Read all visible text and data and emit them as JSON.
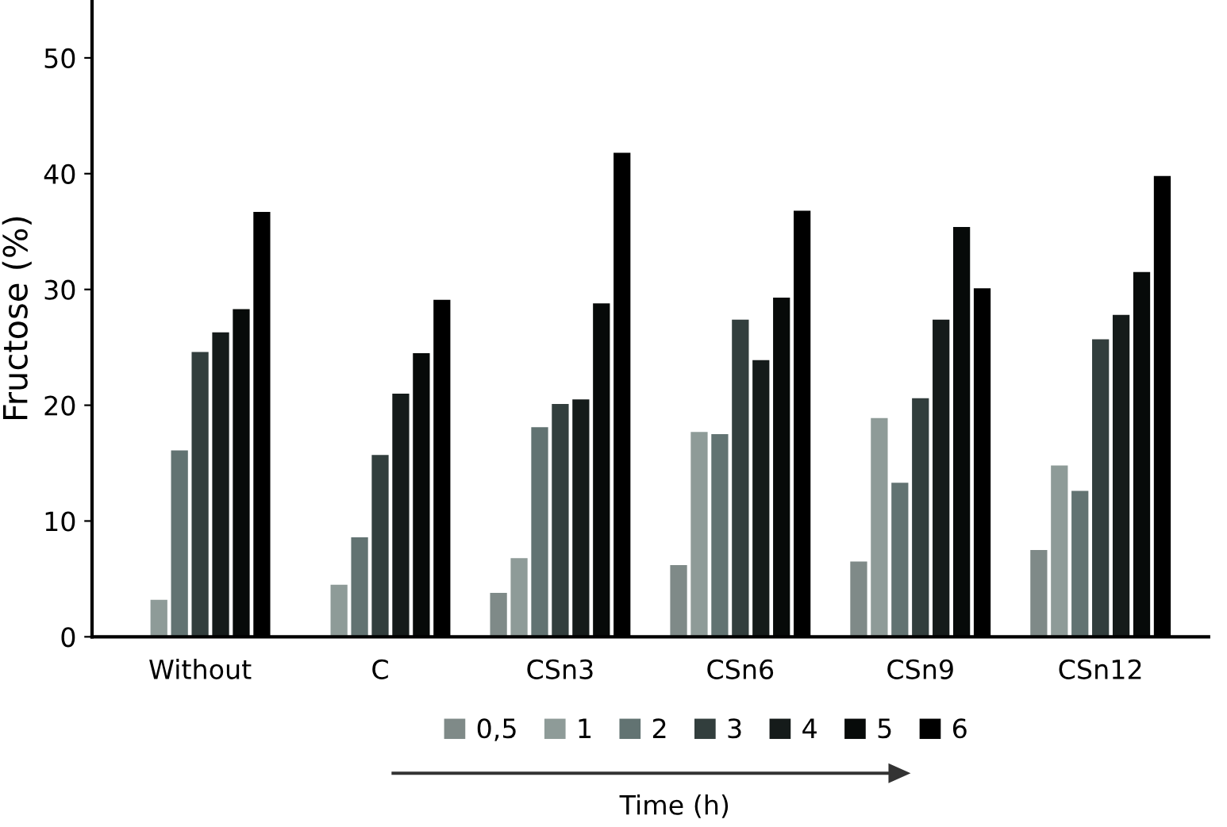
{
  "chart_data": {
    "type": "bar",
    "ylabel": "Fructose (%)",
    "legend_title": "Time (h)",
    "categories": [
      "Without",
      "C",
      "CSn3",
      "CSn6",
      "CSn9",
      "CSn12"
    ],
    "series": [
      {
        "name": "0,5",
        "color": "#7f8a88",
        "values": [
          null,
          null,
          3.8,
          6.2,
          6.5,
          7.5
        ]
      },
      {
        "name": "1",
        "color": "#8e9b98",
        "values": [
          3.2,
          4.5,
          6.8,
          17.7,
          18.9,
          14.8
        ]
      },
      {
        "name": "2",
        "color": "#627372",
        "values": [
          16.1,
          8.6,
          18.1,
          17.5,
          13.3,
          12.6
        ]
      },
      {
        "name": "3",
        "color": "#323e3d",
        "values": [
          24.6,
          15.7,
          20.1,
          27.4,
          20.6,
          25.7
        ]
      },
      {
        "name": "4",
        "color": "#151b1a",
        "values": [
          26.3,
          21.0,
          20.5,
          23.9,
          27.4,
          27.8
        ]
      },
      {
        "name": "5",
        "color": "#070a09",
        "values": [
          28.3,
          24.5,
          28.8,
          29.3,
          35.4,
          31.5
        ]
      },
      {
        "name": "6",
        "color": "#000000",
        "values": [
          36.7,
          29.1,
          41.8,
          36.8,
          30.1,
          39.8
        ]
      }
    ],
    "ylim": [
      0,
      55
    ],
    "yticks": [
      0,
      10,
      20,
      30,
      40,
      50
    ],
    "legend": "bottom"
  }
}
